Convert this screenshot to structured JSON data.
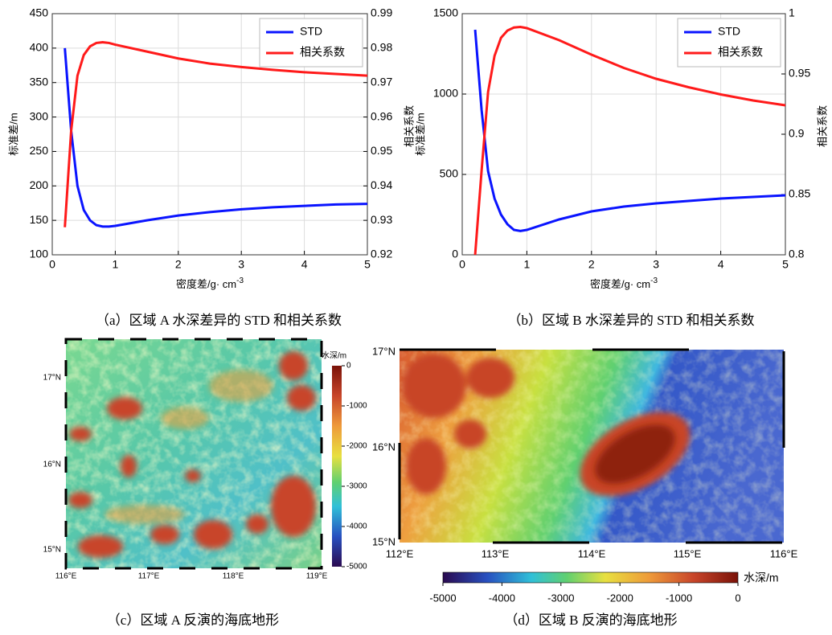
{
  "chart_data": [
    {
      "type": "line",
      "x_label": {
        "text": "密度差/g· cm",
        "superscript": "-3"
      },
      "y_label": "标准差/m",
      "y2_label": "相关系数",
      "x": [
        0.2,
        0.3,
        0.4,
        0.5,
        0.6,
        0.7,
        0.8,
        0.9,
        1.0,
        1.5,
        2,
        2.5,
        3,
        3.5,
        4,
        4.5,
        5
      ],
      "series": [
        {
          "name": "STD",
          "color": "#0a14ff",
          "values": [
            400,
            280,
            200,
            165,
            150,
            143,
            141,
            141,
            142,
            150,
            157,
            162,
            166,
            169,
            171,
            173,
            174
          ]
        },
        {
          "name": "相关系数",
          "color": "#ff1a1a",
          "axis": "y2",
          "values": [
            0.928,
            0.956,
            0.972,
            0.978,
            0.9805,
            0.9815,
            0.9817,
            0.9815,
            0.981,
            0.979,
            0.977,
            0.9755,
            0.9745,
            0.9737,
            0.973,
            0.9725,
            0.972
          ]
        }
      ],
      "xlim": [
        0,
        5
      ],
      "xticks": [
        0,
        1,
        2,
        3,
        4,
        5
      ],
      "ylim": [
        100,
        450
      ],
      "yticks": [
        100,
        150,
        200,
        250,
        300,
        350,
        400,
        450
      ],
      "y2lim": [
        0.92,
        0.99
      ],
      "y2ticks": [
        0.92,
        0.93,
        0.94,
        0.95,
        0.96,
        0.97,
        0.98,
        0.99
      ],
      "grid": true,
      "legend": "northeast"
    },
    {
      "type": "line",
      "x_label": {
        "text": "密度差/g· cm",
        "superscript": "-3"
      },
      "y_label": "标准差/m",
      "y2_label": "相关系数",
      "x": [
        0.2,
        0.3,
        0.4,
        0.5,
        0.6,
        0.7,
        0.8,
        0.9,
        1.0,
        1.5,
        2,
        2.5,
        3,
        3.5,
        4,
        4.5,
        5
      ],
      "series": [
        {
          "name": "STD",
          "color": "#0a14ff",
          "values": [
            1400,
            900,
            520,
            350,
            250,
            190,
            155,
            148,
            155,
            220,
            270,
            300,
            320,
            335,
            350,
            360,
            370
          ]
        },
        {
          "name": "相关系数",
          "color": "#ff1a1a",
          "axis": "y2",
          "values": [
            0.8,
            0.87,
            0.935,
            0.965,
            0.98,
            0.986,
            0.9885,
            0.989,
            0.988,
            0.978,
            0.966,
            0.955,
            0.946,
            0.939,
            0.933,
            0.928,
            0.924
          ]
        }
      ],
      "xlim": [
        0,
        5
      ],
      "xticks": [
        0,
        1,
        2,
        3,
        4,
        5
      ],
      "ylim": [
        0,
        1500
      ],
      "yticks": [
        0,
        500,
        1000,
        1500
      ],
      "y2lim": [
        0.8,
        1
      ],
      "y2ticks": [
        0.8,
        0.85,
        0.9,
        0.95,
        1
      ],
      "grid": true,
      "legend": "northeast"
    }
  ],
  "maps": [
    {
      "lat_labels": [
        "17°N",
        "16°N",
        "15°N"
      ],
      "lon_labels": [
        "116°E",
        "117°E",
        "118°E",
        "119°E"
      ],
      "colorbar_label": "水深/m",
      "colorbar_ticks": [
        0,
        -1000,
        -2000,
        -3000,
        -4000,
        -5000
      ]
    },
    {
      "lat_labels": [
        "17°N",
        "16°N",
        "15°N"
      ],
      "lon_labels": [
        "112°E",
        "113°E",
        "114°E",
        "115°E",
        "116°E"
      ],
      "colorbar_label": "水深/m",
      "colorbar_ticks": [
        -5000,
        -4000,
        -3000,
        -2000,
        -1000,
        0
      ]
    }
  ],
  "captions": [
    "（a）区域 A 水深差异的 STD 和相关系数",
    "（b）区域 B 水深差异的 STD 和相关系数",
    "（c）区域 A 反演的海底地形",
    "（d）区域 B 反演的海底地形"
  ]
}
